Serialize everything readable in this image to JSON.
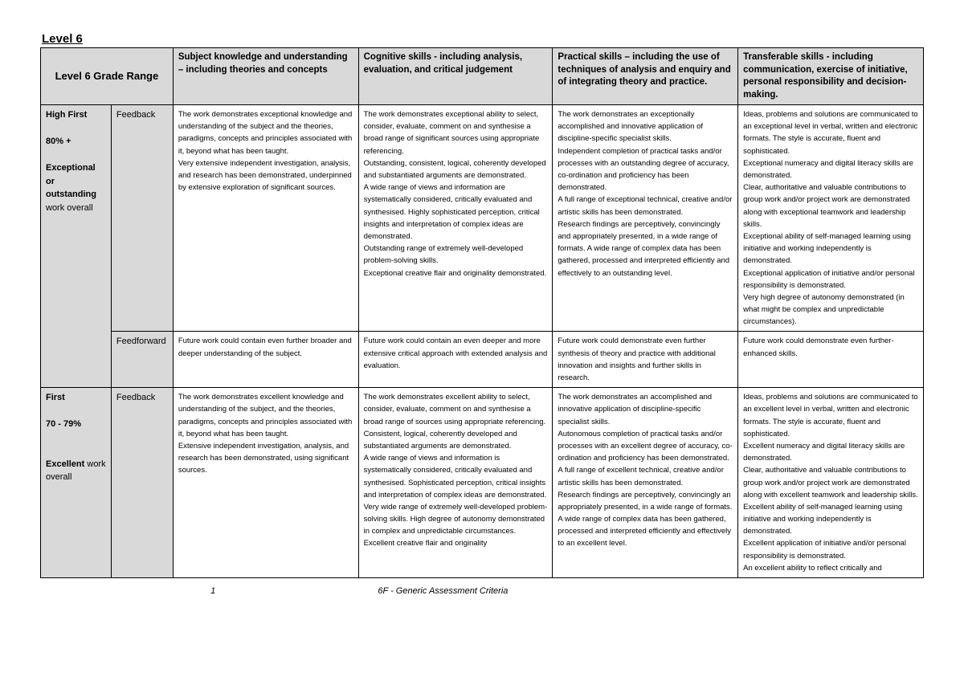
{
  "title": "Level 6",
  "columns": {
    "widths_pct": [
      8,
      7,
      21,
      22,
      21,
      21
    ],
    "range_header": "Level 6 Grade Range",
    "headers": [
      "Subject knowledge and understanding – including theories and concepts",
      "Cognitive skills - including analysis, evaluation, and critical judgement",
      "Practical skills – including the use of techniques of analysis and enquiry and of integrating theory and practice.",
      "Transferable skills - including communication, exercise of initiative, personal responsibility and decision-making."
    ]
  },
  "rows": [
    {
      "grade_html": "<b>High First</b><br><br><b>80% +</b><br><br><b>Exceptional or outstanding</b> work overall",
      "fb_label": "Feedback",
      "cells": [
        "The work demonstrates exceptional knowledge and understanding of the subject and the theories, paradigms, concepts and principles associated with it, beyond what has been taught.\nVery extensive independent investigation, analysis, and research has been demonstrated, underpinned by extensive exploration of significant sources.",
        "The work demonstrates exceptional ability to select, consider, evaluate, comment on and synthesise a broad range of significant sources using appropriate referencing.\nOutstanding, consistent, logical, coherently developed and substantiated arguments are demonstrated.\nA wide range of views and information are systematically considered, critically evaluated and synthesised. Highly sophisticated perception, critical insights and interpretation of complex ideas are demonstrated.\nOutstanding range of extremely well-developed problem-solving skills.\nExceptional creative flair and originality demonstrated.",
        "The work demonstrates an exceptionally accomplished and innovative application of discipline-specific specialist skills.\nIndependent completion of practical tasks and/or processes with an outstanding degree of accuracy, co-ordination and proficiency has been demonstrated.\nA full range of exceptional technical, creative and/or artistic skills has been demonstrated.\nResearch findings are perceptively, convincingly and appropriately presented, in a wide range of formats. A wide range of complex data has been gathered, processed and interpreted efficiently and effectively to an outstanding level.",
        " Ideas, problems and solutions are communicated to an exceptional level in verbal, written and electronic formats. The style is accurate, fluent and sophisticated.\nExceptional numeracy and digital literacy skills are demonstrated.\nClear, authoritative and valuable contributions to group work and/or project work are demonstrated along with exceptional teamwork and leadership skills.\nExceptional ability of self-managed learning using initiative and working independently is demonstrated.\nExceptional application of initiative and/or personal responsibility is demonstrated.\nVery high degree of autonomy demonstrated (in what might be complex and unpredictable circumstances)."
      ]
    },
    {
      "grade_html": "",
      "fb_label": "Feedforward",
      "cells": [
        "Future work could contain even further broader and deeper understanding of the subject.",
        "Future work could contain an even deeper and more extensive critical approach with extended analysis and evaluation.",
        "Future work could demonstrate even further synthesis of theory and practice with additional innovation and insights and further skills in research.",
        "Future work could demonstrate even further- enhanced skills."
      ]
    },
    {
      "grade_html": "<b>First</b><br><br><b>70 - 79%</b><br><br><br><b>Excellent</b> work overall",
      "fb_label": "Feedback",
      "cells": [
        "The work demonstrates excellent knowledge and understanding of the subject, and the theories, paradigms, concepts and principles associated with it, beyond what has been taught.\nExtensive independent investigation, analysis, and research has been demonstrated, using significant sources.",
        "The work demonstrates excellent ability to select, consider, evaluate, comment on and synthesise a broad range of sources using appropriate referencing.\nConsistent, logical, coherently developed and substantiated arguments are demonstrated.\nA wide range of views and information is systematically considered, critically evaluated and synthesised. Sophisticated perception, critical insights and interpretation of complex ideas are demonstrated.\nVery wide range of extremely well-developed problem-solving skills.  High degree of autonomy demonstrated in complex and unpredictable circumstances.\nExcellent creative flair and originality",
        "The work demonstrates an accomplished and innovative application of discipline-specific specialist skills.\nAutonomous completion of practical tasks and/or processes with an excellent degree of accuracy, co-ordination and proficiency has been demonstrated.\nA full range of excellent technical, creative and/or artistic skills has been demonstrated.\nResearch findings are perceptively, convincingly an appropriately presented, in a wide range of formats. A wide range of complex data has been gathered, processed and interpreted efficiently and effectively to an excellent level.",
        "Ideas, problems and solutions are communicated to an excellent level in verbal, written and electronic formats. The style is accurate, fluent and sophisticated.\nExcellent numeracy and digital literacy skills are demonstrated.\nClear, authoritative and valuable contributions to group work and/or project work are demonstrated along with excellent teamwork and leadership skills.\nExcellent ability of self-managed learning using initiative and working independently is demonstrated.\nExcellent application of initiative and/or personal responsibility is demonstrated.\nAn excellent ability to reflect critically and"
      ]
    }
  ],
  "footer": {
    "page": "1",
    "doc": "6F - Generic Assessment Criteria"
  }
}
